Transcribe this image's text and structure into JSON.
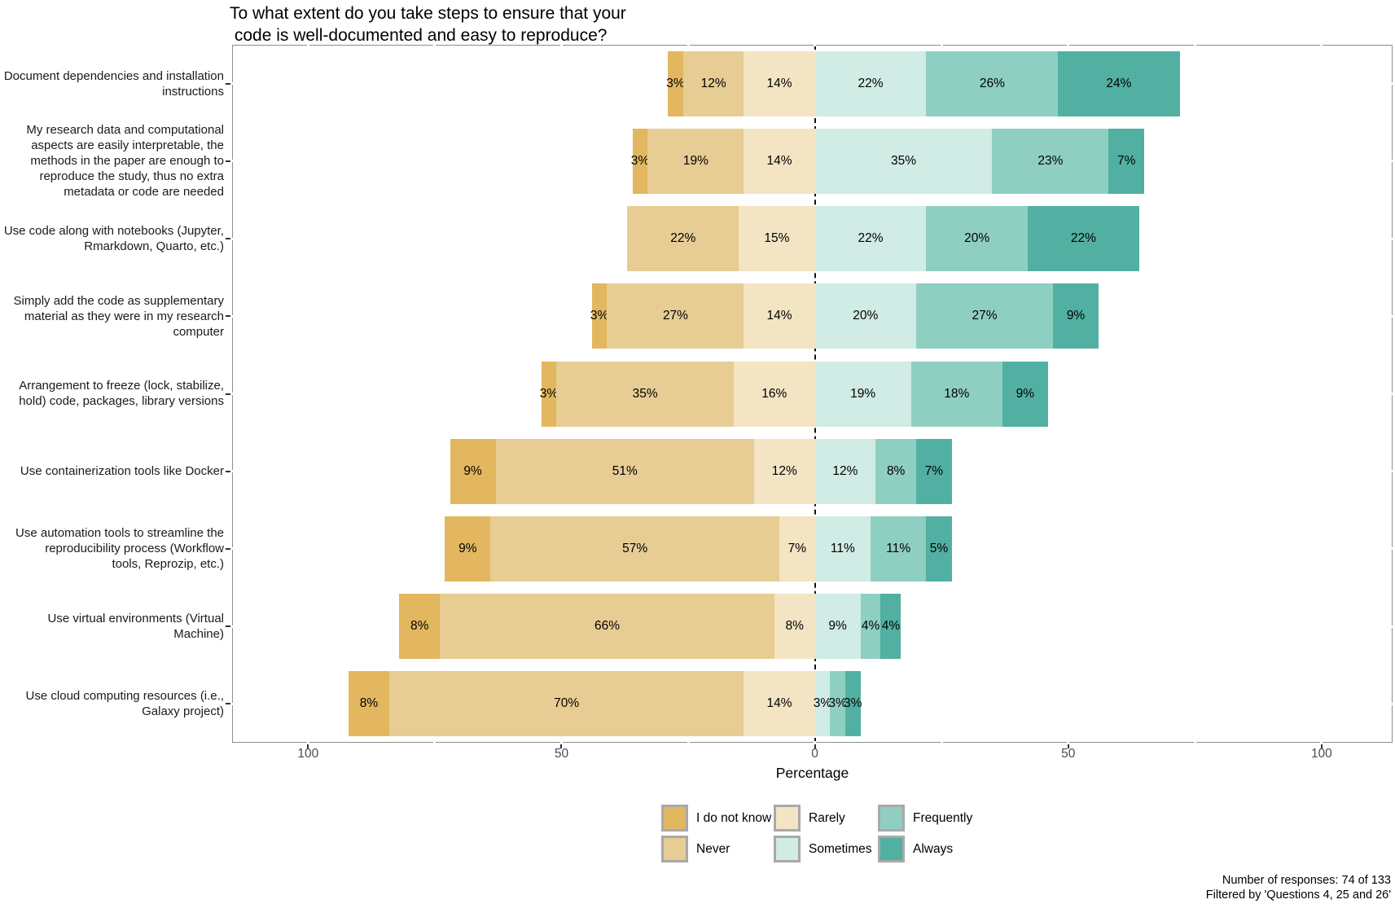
{
  "chart_data": {
    "type": "bar",
    "variant": "diverging-stacked-likert",
    "title": "To what extent do you take steps to ensure that your\n code is well-documented and easy to reproduce?",
    "xlabel": "Percentage",
    "unit": "%",
    "xlim": [
      -115,
      114
    ],
    "x_ticks": [
      {
        "value": -100,
        "label": "100"
      },
      {
        "value": -50,
        "label": "50"
      },
      {
        "value": 0,
        "label": "0"
      },
      {
        "value": 50,
        "label": "50"
      },
      {
        "value": 100,
        "label": "100"
      }
    ],
    "minor_grid_step": 25,
    "zero_line": true,
    "grid": false,
    "legend_position": "bottom",
    "levels": [
      {
        "name": "I do not know",
        "color": "#e2b75f",
        "side": "negative"
      },
      {
        "name": "Never",
        "color": "#e7cc93",
        "side": "negative"
      },
      {
        "name": "Rarely",
        "color": "#f3e4c3",
        "side": "negative"
      },
      {
        "name": "Sometimes",
        "color": "#d1ebe5",
        "side": "positive"
      },
      {
        "name": "Frequently",
        "color": "#8ecfc1",
        "side": "positive"
      },
      {
        "name": "Always",
        "color": "#51b0a1",
        "side": "positive"
      }
    ],
    "rows": [
      {
        "label": "Document dependencies and installation\ninstructions",
        "values": [
          3,
          12,
          14,
          22,
          26,
          24
        ]
      },
      {
        "label": "My research data and computational\naspects are easily interpretable, the\nmethods in the paper are enough to\nreproduce the study, thus no extra\nmetadata or code are needed",
        "values": [
          3,
          19,
          14,
          35,
          23,
          7
        ]
      },
      {
        "label": "Use code along with notebooks (Jupyter,\nRmarkdown, Quarto, etc.)",
        "values": [
          0,
          22,
          15,
          22,
          20,
          22
        ]
      },
      {
        "label": "Simply add the code as supplementary\nmaterial as they were in my research\ncomputer",
        "values": [
          3,
          27,
          14,
          20,
          27,
          9
        ]
      },
      {
        "label": "Arrangement to freeze (lock, stabilize,\nhold) code, packages, library versions",
        "values": [
          3,
          35,
          16,
          19,
          18,
          9
        ]
      },
      {
        "label": "Use containerization tools like Docker",
        "values": [
          9,
          51,
          12,
          12,
          8,
          7
        ]
      },
      {
        "label": "Use automation tools to streamline the\nreproducibility process (Workflow\ntools, Reprozip, etc.)",
        "values": [
          9,
          57,
          7,
          11,
          11,
          5
        ]
      },
      {
        "label": "Use virtual environments (Virtual\nMachine)",
        "values": [
          8,
          66,
          8,
          9,
          4,
          4
        ]
      },
      {
        "label": "Use cloud computing resources (i.e.,\nGalaxy project)",
        "values": [
          8,
          70,
          14,
          3,
          3,
          3
        ]
      }
    ]
  },
  "footer": {
    "lines": [
      "Number of responses: 74 of 133",
      "Filtered by 'Questions 4, 25 and 26'"
    ]
  }
}
